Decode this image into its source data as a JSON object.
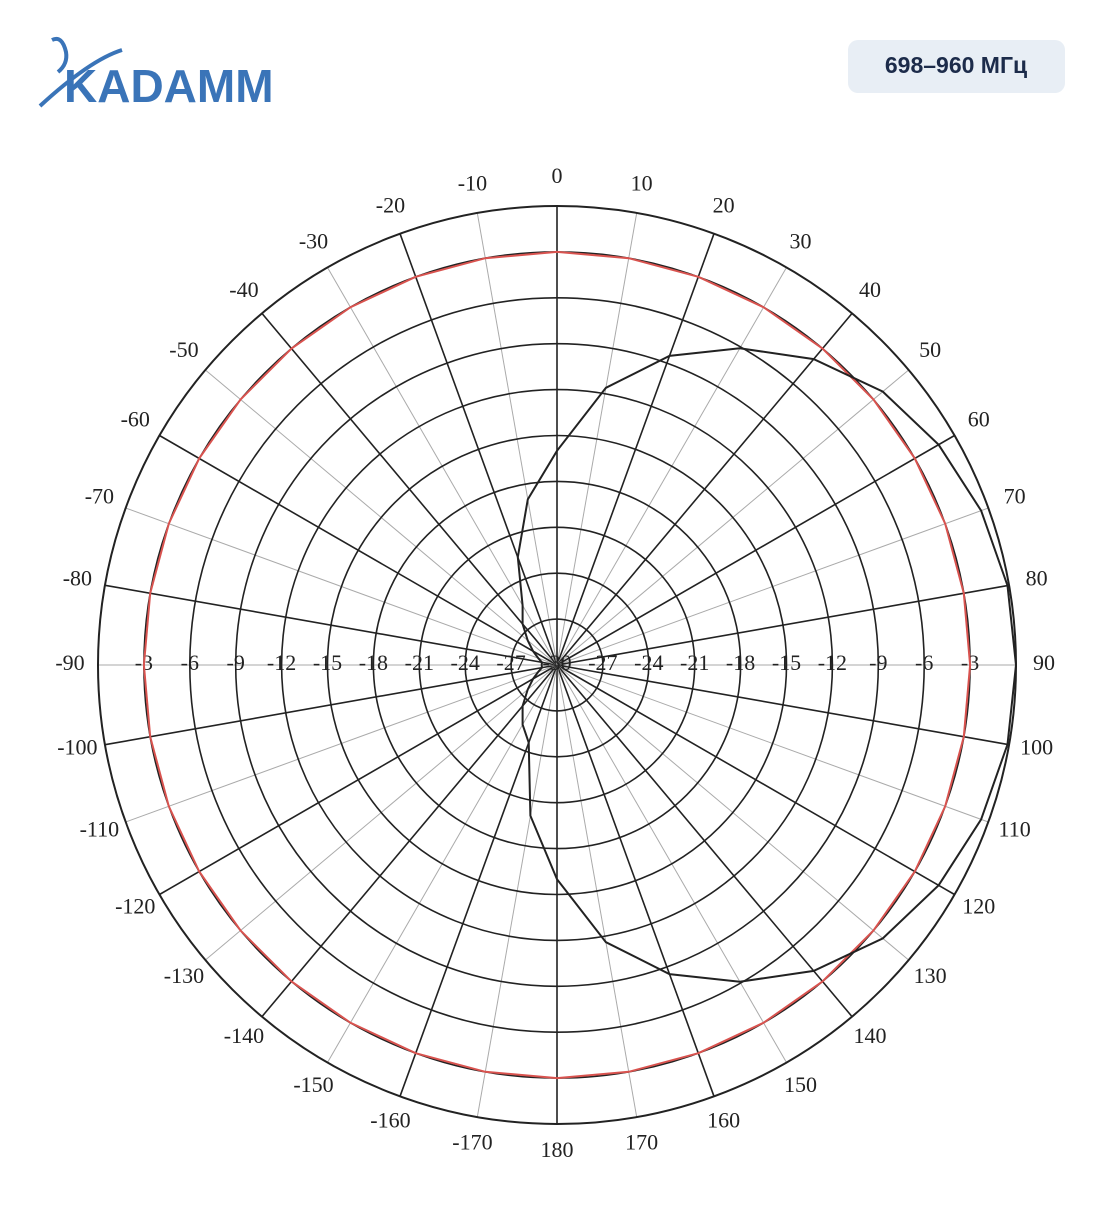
{
  "header": {
    "logo": "KADAMM",
    "badge": "698–960 МГц"
  },
  "chart_data": {
    "type": "polar",
    "theta": [
      -170,
      -160,
      -150,
      -140,
      -130,
      -120,
      -110,
      -100,
      -90,
      -80,
      -70,
      -60,
      -50,
      -40,
      -30,
      -20,
      -10,
      0,
      10,
      20,
      30,
      40,
      50,
      60,
      70,
      80,
      90,
      100,
      110,
      120,
      130,
      140,
      150,
      160,
      170,
      180
    ],
    "series": [
      {
        "color": "#d9534f",
        "values": [
          -3,
          -3,
          -3,
          -3,
          -3,
          -3,
          -3,
          -3,
          -3,
          -3,
          -3,
          -3,
          -3,
          -3,
          -3,
          -3,
          -3,
          -3,
          -3,
          -3,
          -3,
          -3,
          -3,
          -3,
          -3,
          -3,
          -3,
          -3,
          -3,
          -3,
          -3,
          -3,
          -3,
          -3,
          -3,
          -3
        ]
      },
      {
        "color": "#222222",
        "values": [
          -20,
          -24.6,
          -25.5,
          -26.5,
          -27.5,
          -28.2,
          -28.7,
          -29,
          -29,
          -29,
          -28.7,
          -28.2,
          -27.5,
          -26.5,
          -25.5,
          -22.5,
          -19,
          -16,
          -11.6,
          -8.5,
          -6.1,
          -3.9,
          -2.2,
          -1.2,
          -0.5,
          -0.1,
          0,
          -0.1,
          -0.5,
          -1.2,
          -2.2,
          -3.9,
          -6.1,
          -8.5,
          -11.6,
          -16
        ]
      }
    ],
    "rlim": [
      -30,
      0
    ],
    "rticks": [
      -3,
      -6,
      -9,
      -12,
      -15,
      -18,
      -21,
      -24,
      -27,
      -30
    ],
    "thetaticks": [
      0,
      10,
      20,
      30,
      40,
      50,
      60,
      70,
      80,
      90,
      100,
      110,
      120,
      130,
      140,
      150,
      160,
      170,
      180,
      -170,
      -160,
      -150,
      -140,
      -130,
      -120,
      -110,
      -100,
      -90,
      -80,
      -70,
      -60,
      -50,
      -40,
      -30,
      -20,
      -10
    ],
    "grid": true
  }
}
